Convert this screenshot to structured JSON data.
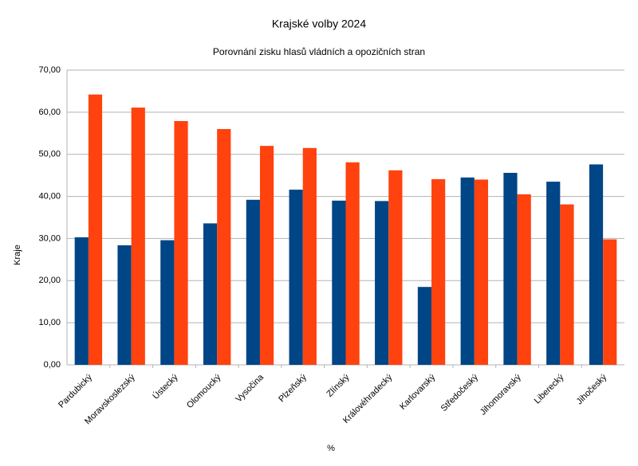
{
  "chart_data": {
    "type": "bar",
    "title": "Krajské volby 2024",
    "subtitle": "Porovnání zisku hlasů vládních a opozičních stran",
    "y_label": "Kraje",
    "x_label": "%",
    "categories": [
      "Pardubický",
      "Moravskoslezský",
      "Ústecký",
      "Olomoucký",
      "Vysočina",
      "Plzeňský",
      "Zlínský",
      "Královéhradecký",
      "Karlovarský",
      "Středočeský",
      "Jihomoravský",
      "Liberecký",
      "Jihočeský"
    ],
    "series": [
      {
        "color": "#004586",
        "values": [
          30.3,
          28.4,
          29.6,
          33.6,
          39.2,
          41.6,
          39.0,
          38.9,
          18.5,
          44.5,
          45.6,
          43.5,
          47.6
        ]
      },
      {
        "color": "#ff420e",
        "values": [
          64.2,
          61.1,
          57.9,
          56.0,
          52.0,
          51.5,
          48.1,
          46.2,
          44.1,
          44.0,
          40.5,
          38.1,
          29.8
        ]
      }
    ],
    "ylim": [
      0,
      70
    ],
    "yticks": [
      {
        "value": 0,
        "label": "0,00"
      },
      {
        "value": 10,
        "label": "10,00"
      },
      {
        "value": 20,
        "label": "20,00"
      },
      {
        "value": 30,
        "label": "30,00"
      },
      {
        "value": 40,
        "label": "40,00"
      },
      {
        "value": 50,
        "label": "50,00"
      },
      {
        "value": 60,
        "label": "60,00"
      },
      {
        "value": 70,
        "label": "70,00"
      }
    ],
    "grid": true
  }
}
